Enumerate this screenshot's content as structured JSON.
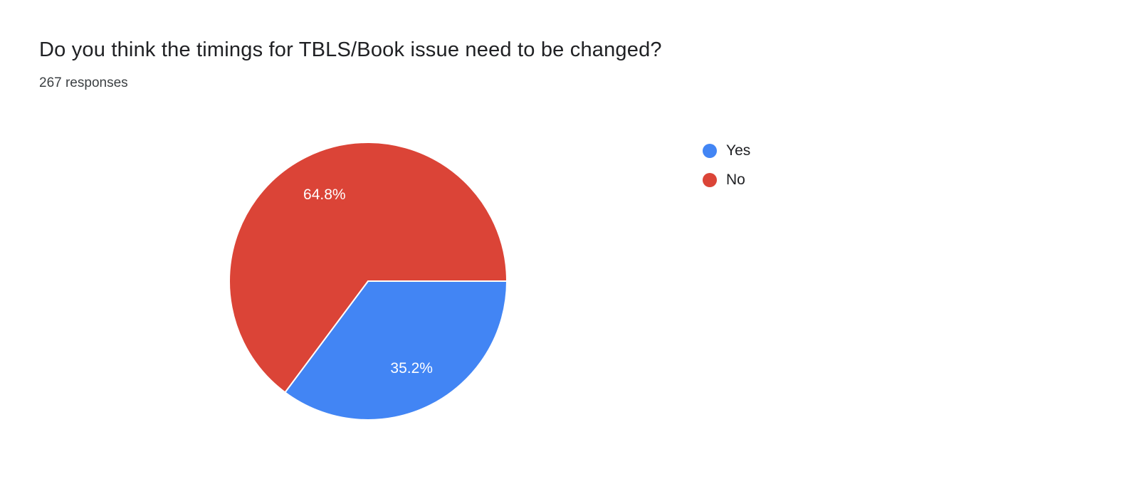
{
  "page": {
    "background": "#ffffff"
  },
  "header": {
    "title": "Do you think the timings for TBLS/Book issue need to be changed?",
    "responses_count": "267 responses"
  },
  "chart_data": {
    "type": "pie",
    "title": "Do you think the timings for TBLS/Book issue need to be changed?",
    "subtitle": "267 responses",
    "labels": [
      "Yes",
      "No"
    ],
    "values": [
      35.2,
      64.8
    ],
    "value_labels": [
      "35.2%",
      "64.8%"
    ],
    "colors": [
      "#4285f4",
      "#db4437"
    ],
    "slice_label_color": "#ffffff",
    "start_angle": "east",
    "direction": "clockwise",
    "legend_position": "right"
  }
}
